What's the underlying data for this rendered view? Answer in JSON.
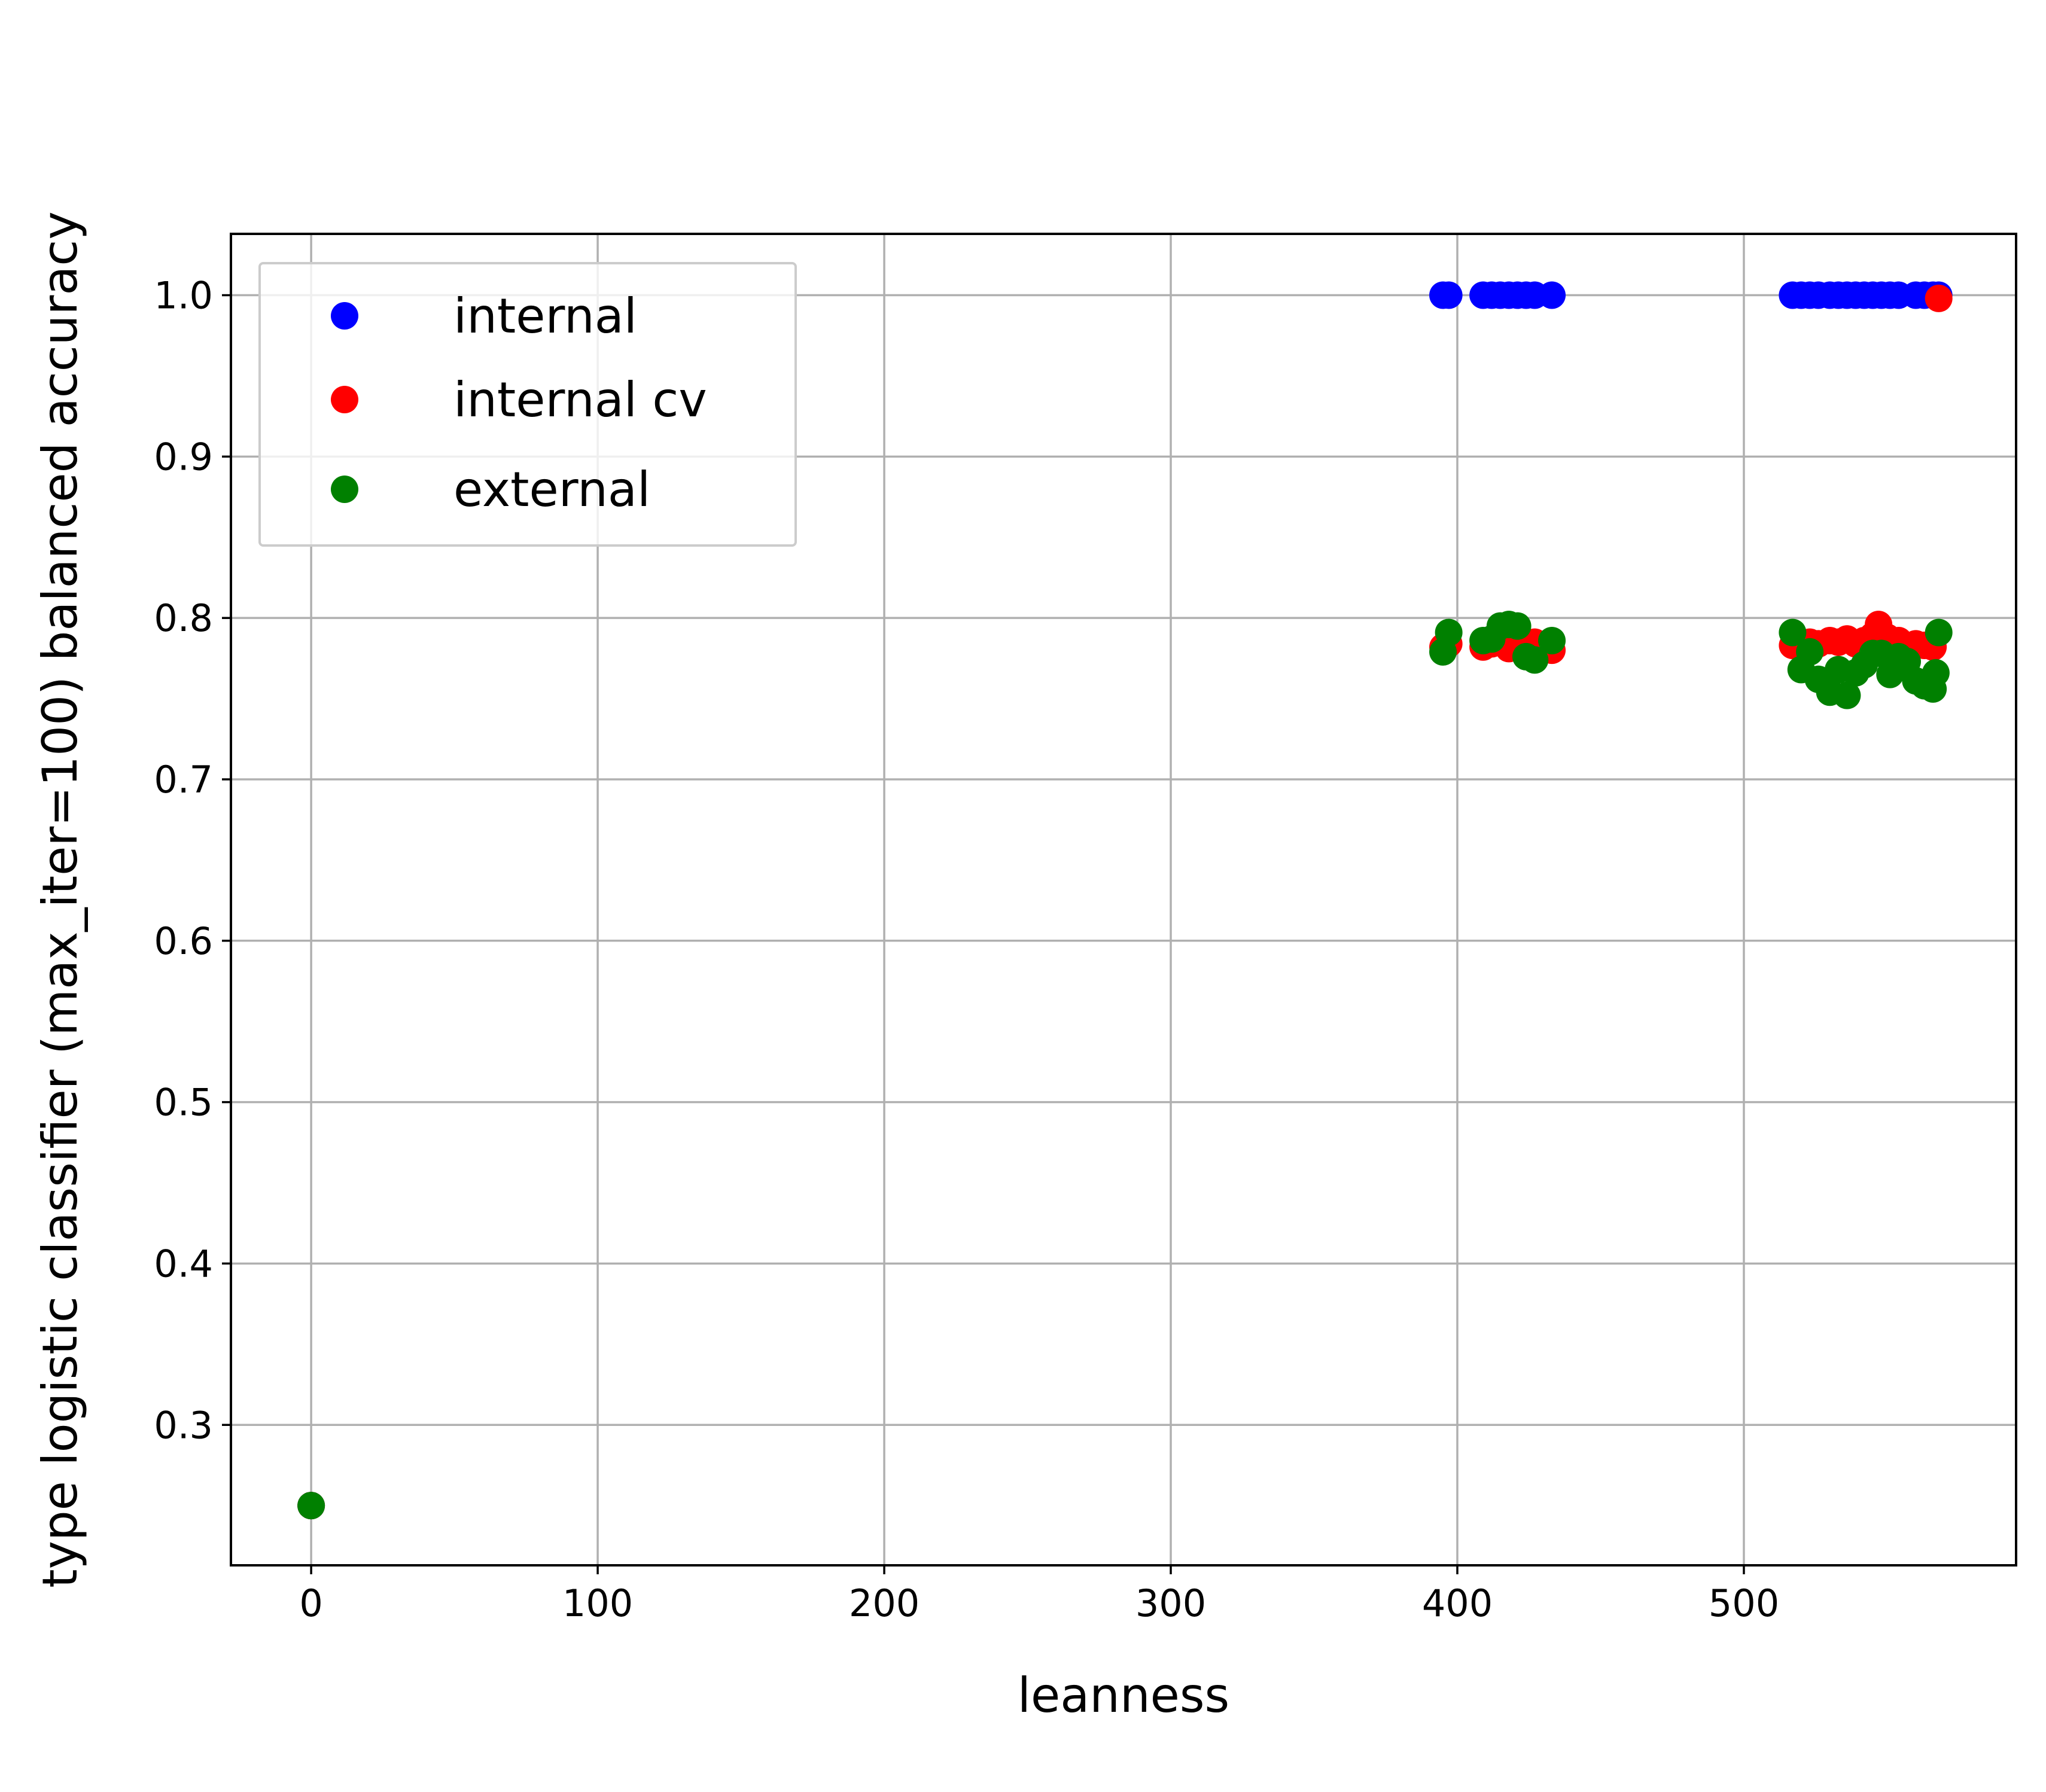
{
  "chart_data": {
    "type": "scatter",
    "title": "",
    "xlabel": "leanness",
    "ylabel": "type logistic classifier (max_iter=100) balanced accuracy",
    "xlim": [
      -28,
      595
    ],
    "ylim": [
      0.213,
      1.038
    ],
    "xticks": [
      0,
      100,
      200,
      300,
      400,
      500
    ],
    "yticks": [
      0.3,
      0.4,
      0.5,
      0.6,
      0.7,
      0.8,
      0.9,
      1.0
    ],
    "xtick_labels": [
      "0",
      "100",
      "200",
      "300",
      "400",
      "500"
    ],
    "ytick_labels": [
      "0.3",
      "0.4",
      "0.5",
      "0.6",
      "0.7",
      "0.8",
      "0.9",
      "1.0"
    ],
    "grid": true,
    "legend_position": "top-left",
    "series": [
      {
        "name": "internal",
        "color": "#0000ff",
        "points": [
          [
            0,
            0.25
          ],
          [
            395,
            1.0
          ],
          [
            397,
            1.0
          ],
          [
            409,
            1.0
          ],
          [
            412,
            1.0
          ],
          [
            415,
            1.0
          ],
          [
            418,
            1.0
          ],
          [
            421,
            1.0
          ],
          [
            424,
            1.0
          ],
          [
            427,
            1.0
          ],
          [
            433,
            1.0
          ],
          [
            517,
            1.0
          ],
          [
            520,
            1.0
          ],
          [
            523,
            1.0
          ],
          [
            526,
            1.0
          ],
          [
            530,
            1.0
          ],
          [
            533,
            1.0
          ],
          [
            536,
            1.0
          ],
          [
            539,
            1.0
          ],
          [
            542,
            1.0
          ],
          [
            545,
            1.0
          ],
          [
            548,
            1.0
          ],
          [
            551,
            1.0
          ],
          [
            554,
            1.0
          ],
          [
            560,
            1.0
          ],
          [
            563,
            1.0
          ],
          [
            566,
            1.0
          ],
          [
            568,
            1.0
          ]
        ]
      },
      {
        "name": "internal cv",
        "color": "#ff0000",
        "points": [
          [
            0,
            0.25
          ],
          [
            395,
            0.782
          ],
          [
            397,
            0.784
          ],
          [
            409,
            0.782
          ],
          [
            412,
            0.784
          ],
          [
            415,
            0.786
          ],
          [
            418,
            0.781
          ],
          [
            421,
            0.787
          ],
          [
            424,
            0.782
          ],
          [
            427,
            0.785
          ],
          [
            433,
            0.78
          ],
          [
            517,
            0.783
          ],
          [
            520,
            0.782
          ],
          [
            523,
            0.785
          ],
          [
            526,
            0.784
          ],
          [
            530,
            0.786
          ],
          [
            533,
            0.785
          ],
          [
            536,
            0.787
          ],
          [
            539,
            0.784
          ],
          [
            542,
            0.786
          ],
          [
            545,
            0.789
          ],
          [
            547,
            0.796
          ],
          [
            550,
            0.788
          ],
          [
            554,
            0.786
          ],
          [
            560,
            0.784
          ],
          [
            563,
            0.783
          ],
          [
            566,
            0.782
          ],
          [
            568,
            0.998
          ]
        ]
      },
      {
        "name": "external",
        "color": "#008000",
        "points": [
          [
            0,
            0.25
          ],
          [
            395,
            0.779
          ],
          [
            397,
            0.791
          ],
          [
            409,
            0.786
          ],
          [
            412,
            0.787
          ],
          [
            415,
            0.795
          ],
          [
            418,
            0.796
          ],
          [
            421,
            0.795
          ],
          [
            424,
            0.776
          ],
          [
            427,
            0.774
          ],
          [
            433,
            0.786
          ],
          [
            517,
            0.791
          ],
          [
            520,
            0.768
          ],
          [
            523,
            0.779
          ],
          [
            526,
            0.762
          ],
          [
            530,
            0.754
          ],
          [
            533,
            0.768
          ],
          [
            536,
            0.752
          ],
          [
            539,
            0.766
          ],
          [
            542,
            0.771
          ],
          [
            545,
            0.778
          ],
          [
            548,
            0.778
          ],
          [
            551,
            0.765
          ],
          [
            554,
            0.776
          ],
          [
            557,
            0.773
          ],
          [
            560,
            0.761
          ],
          [
            563,
            0.758
          ],
          [
            566,
            0.756
          ],
          [
            567,
            0.766
          ],
          [
            568,
            0.791
          ]
        ]
      }
    ]
  }
}
